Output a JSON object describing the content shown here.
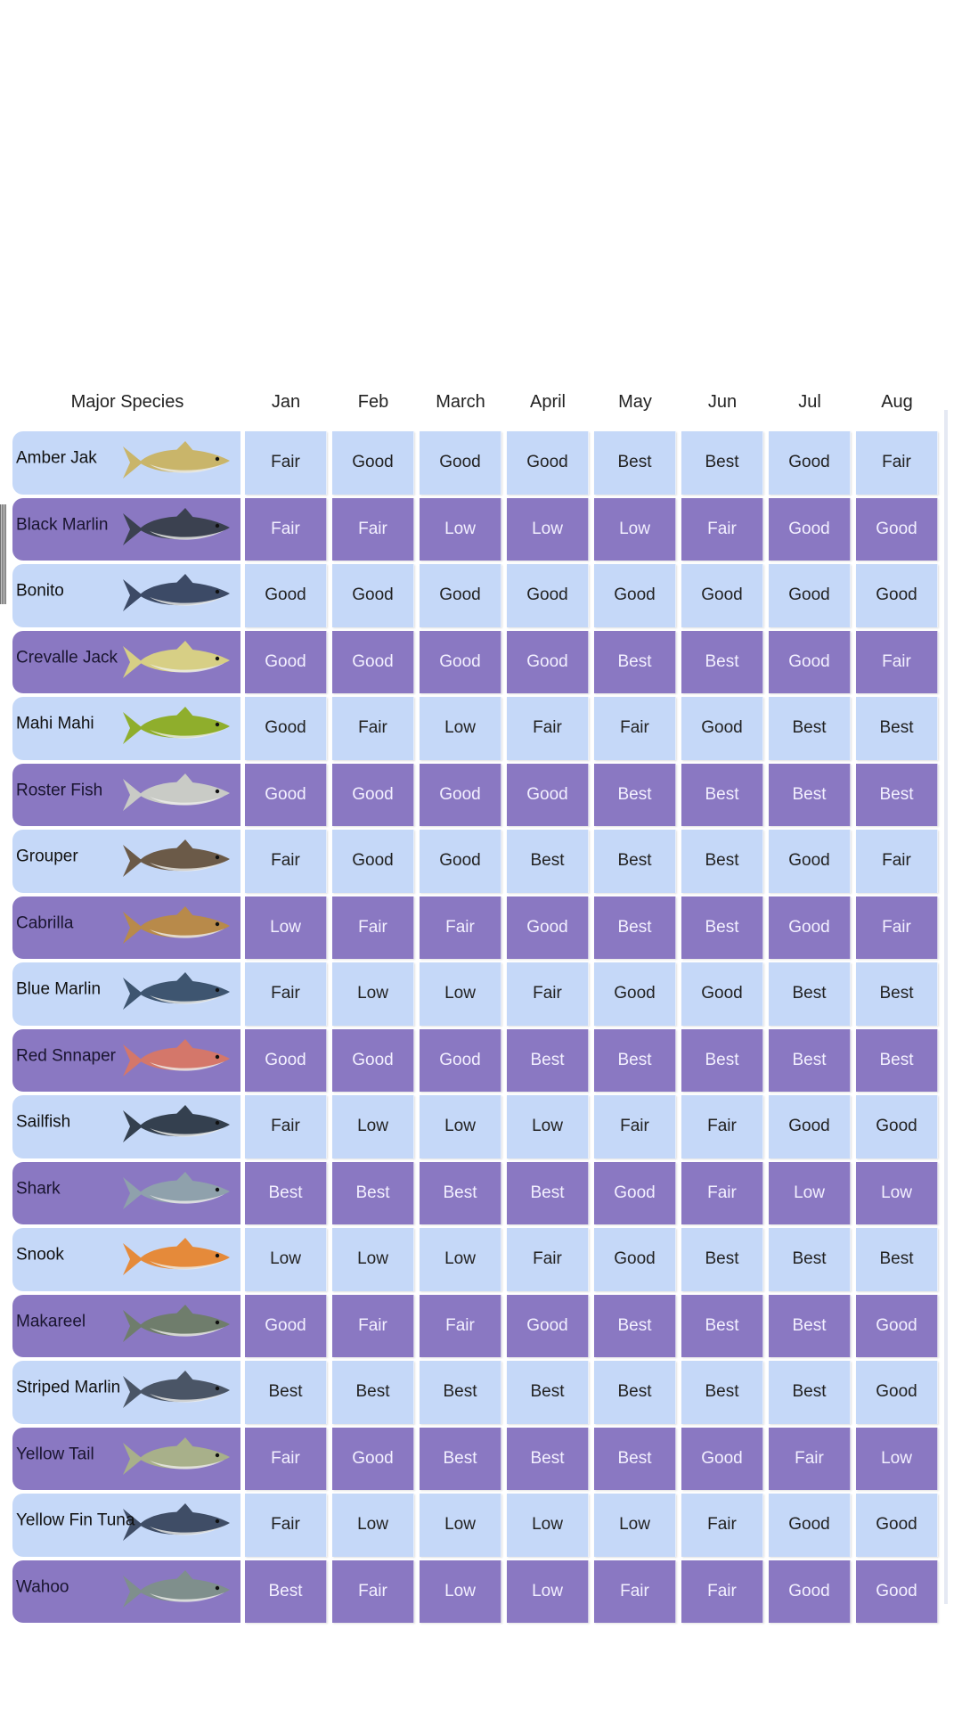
{
  "table": {
    "header": {
      "species": "Major Species",
      "months": [
        "Jan",
        "Feb",
        "March",
        "April",
        "May",
        "Jun",
        "Jul",
        "Aug"
      ]
    },
    "colors": {
      "light": "#c5d8f8",
      "dark": "#8a78c2"
    },
    "rows": [
      {
        "species": "Amber Jak",
        "fish_icon": "amberjack-fish-icon",
        "body": "#c9b56a",
        "ratings": [
          "Fair",
          "Good",
          "Good",
          "Good",
          "Best",
          "Best",
          "Good",
          "Fair"
        ]
      },
      {
        "species": "Black Marlin",
        "fish_icon": "black-marlin-fish-icon",
        "body": "#3b4150",
        "ratings": [
          "Fair",
          "Fair",
          "Low",
          "Low",
          "Low",
          "Fair",
          "Good",
          "Good"
        ]
      },
      {
        "species": "Bonito",
        "fish_icon": "bonito-fish-icon",
        "body": "#3c4a66",
        "ratings": [
          "Good",
          "Good",
          "Good",
          "Good",
          "Good",
          "Good",
          "Good",
          "Good"
        ]
      },
      {
        "species": "Crevalle Jack",
        "fish_icon": "crevalle-jack-fish-icon",
        "body": "#d7cf85",
        "ratings": [
          "Good",
          "Good",
          "Good",
          "Good",
          "Best",
          "Best",
          "Good",
          "Fair"
        ]
      },
      {
        "species": "Mahi Mahi",
        "fish_icon": "mahi-mahi-fish-icon",
        "body": "#8fae2c",
        "ratings": [
          "Good",
          "Fair",
          "Low",
          "Fair",
          "Fair",
          "Good",
          "Best",
          "Best"
        ]
      },
      {
        "species": "Roster Fish",
        "fish_icon": "roosterfish-fish-icon",
        "body": "#c9cbc6",
        "ratings": [
          "Good",
          "Good",
          "Good",
          "Good",
          "Best",
          "Best",
          "Best",
          "Best"
        ]
      },
      {
        "species": "Grouper",
        "fish_icon": "grouper-fish-icon",
        "body": "#6b5a48",
        "ratings": [
          "Fair",
          "Good",
          "Good",
          "Best",
          "Best",
          "Best",
          "Good",
          "Fair"
        ]
      },
      {
        "species": "Cabrilla",
        "fish_icon": "cabrilla-fish-icon",
        "body": "#b88a4a",
        "ratings": [
          "Low",
          "Fair",
          "Fair",
          "Good",
          "Best",
          "Best",
          "Good",
          "Fair"
        ]
      },
      {
        "species": "Blue Marlin",
        "fish_icon": "blue-marlin-fish-icon",
        "body": "#3e5570",
        "ratings": [
          "Fair",
          "Low",
          "Low",
          "Fair",
          "Good",
          "Good",
          "Best",
          "Best"
        ]
      },
      {
        "species": "Red Snnaper",
        "fish_icon": "red-snapper-fish-icon",
        "body": "#d4776a",
        "ratings": [
          "Good",
          "Good",
          "Good",
          "Best",
          "Best",
          "Best",
          "Best",
          "Best"
        ]
      },
      {
        "species": "Sailfish",
        "fish_icon": "sailfish-fish-icon",
        "body": "#34404f",
        "ratings": [
          "Fair",
          "Low",
          "Low",
          "Low",
          "Fair",
          "Fair",
          "Good",
          "Good"
        ]
      },
      {
        "species": "Shark",
        "fish_icon": "shark-fish-icon",
        "body": "#8fa1ac",
        "ratings": [
          "Best",
          "Best",
          "Best",
          "Best",
          "Good",
          "Fair",
          "Low",
          "Low"
        ]
      },
      {
        "species": "Snook",
        "fish_icon": "snook-fish-icon",
        "body": "#e58a3a",
        "ratings": [
          "Low",
          "Low",
          "Low",
          "Fair",
          "Good",
          "Best",
          "Best",
          "Best"
        ]
      },
      {
        "species": "Makareel",
        "fish_icon": "mackerel-fish-icon",
        "body": "#6f7d6c",
        "ratings": [
          "Good",
          "Fair",
          "Fair",
          "Good",
          "Best",
          "Best",
          "Best",
          "Good"
        ]
      },
      {
        "species": "Striped Marlin",
        "fish_icon": "striped-marlin-fish-icon",
        "body": "#4a5566",
        "ratings": [
          "Best",
          "Best",
          "Best",
          "Best",
          "Best",
          "Best",
          "Best",
          "Good"
        ]
      },
      {
        "species": "Yellow Tail",
        "fish_icon": "yellowtail-fish-icon",
        "body": "#a8b08a",
        "ratings": [
          "Fair",
          "Good",
          "Best",
          "Best",
          "Best",
          "Good",
          "Fair",
          "Low"
        ]
      },
      {
        "species": "Yellow Fin Tuna",
        "fish_icon": "yellowfin-tuna-fish-icon",
        "body": "#3f4d66",
        "ratings": [
          "Fair",
          "Low",
          "Low",
          "Low",
          "Low",
          "Fair",
          "Good",
          "Good"
        ]
      },
      {
        "species": "Wahoo",
        "fish_icon": "wahoo-fish-icon",
        "body": "#7f8f8c",
        "ratings": [
          "Best",
          "Fair",
          "Low",
          "Low",
          "Fair",
          "Fair",
          "Good",
          "Good"
        ]
      }
    ]
  }
}
